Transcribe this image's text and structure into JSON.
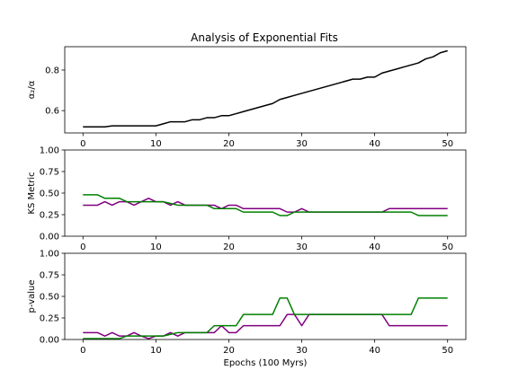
{
  "chart_data": [
    {
      "type": "line",
      "title": "Analysis of Exponential Fits",
      "xlabel": "",
      "ylabel": "α₂/α",
      "xlim": [
        -2.5,
        52.5
      ],
      "ylim": [
        0.49,
        0.915
      ],
      "xticks": [
        0,
        10,
        20,
        30,
        40,
        50
      ],
      "yticks": [
        0.6,
        0.8
      ],
      "ytick_labels": [
        "0.6",
        "0.8"
      ],
      "grid": false,
      "series": [
        {
          "color": "#000000",
          "x": [
            0,
            1,
            2,
            3,
            4,
            5,
            6,
            7,
            8,
            9,
            10,
            11,
            12,
            13,
            14,
            15,
            16,
            17,
            18,
            19,
            20,
            21,
            22,
            23,
            24,
            25,
            26,
            27,
            28,
            29,
            30,
            31,
            32,
            33,
            34,
            35,
            36,
            37,
            38,
            39,
            40,
            41,
            42,
            43,
            44,
            45,
            46,
            47,
            48,
            49,
            50
          ],
          "y": [
            0.52,
            0.52,
            0.52,
            0.52,
            0.525,
            0.525,
            0.525,
            0.525,
            0.525,
            0.525,
            0.525,
            0.535,
            0.545,
            0.545,
            0.545,
            0.555,
            0.555,
            0.565,
            0.565,
            0.575,
            0.575,
            0.585,
            0.595,
            0.605,
            0.615,
            0.625,
            0.635,
            0.655,
            0.665,
            0.675,
            0.685,
            0.695,
            0.705,
            0.715,
            0.725,
            0.735,
            0.745,
            0.755,
            0.755,
            0.765,
            0.765,
            0.785,
            0.795,
            0.805,
            0.815,
            0.825,
            0.835,
            0.855,
            0.865,
            0.885,
            0.895
          ]
        }
      ]
    },
    {
      "type": "line",
      "title": "",
      "xlabel": "",
      "ylabel": "KS Metric",
      "xlim": [
        -2.5,
        52.5
      ],
      "ylim": [
        0,
        1
      ],
      "xticks": [
        0,
        10,
        20,
        30,
        40,
        50
      ],
      "yticks": [
        0,
        0.25,
        0.5,
        0.75,
        1
      ],
      "ytick_labels": [
        "0.00",
        "0.25",
        "0.50",
        "0.75",
        "1.00"
      ],
      "grid": false,
      "series": [
        {
          "color": "#800080",
          "x": [
            0,
            1,
            2,
            3,
            4,
            5,
            6,
            7,
            8,
            9,
            10,
            11,
            12,
            13,
            14,
            15,
            16,
            17,
            18,
            19,
            20,
            21,
            22,
            23,
            24,
            25,
            26,
            27,
            28,
            29,
            30,
            31,
            32,
            33,
            34,
            35,
            36,
            37,
            38,
            39,
            40,
            41,
            42,
            43,
            44,
            45,
            46,
            47,
            48,
            49,
            50
          ],
          "y": [
            0.36,
            0.36,
            0.36,
            0.4,
            0.36,
            0.4,
            0.4,
            0.36,
            0.4,
            0.44,
            0.4,
            0.4,
            0.36,
            0.4,
            0.36,
            0.36,
            0.36,
            0.36,
            0.36,
            0.32,
            0.36,
            0.36,
            0.32,
            0.32,
            0.32,
            0.32,
            0.32,
            0.32,
            0.28,
            0.28,
            0.32,
            0.28,
            0.28,
            0.28,
            0.28,
            0.28,
            0.28,
            0.28,
            0.28,
            0.28,
            0.28,
            0.28,
            0.32,
            0.32,
            0.32,
            0.32,
            0.32,
            0.32,
            0.32,
            0.32,
            0.32
          ]
        },
        {
          "color": "#008000",
          "x": [
            0,
            1,
            2,
            3,
            4,
            5,
            6,
            7,
            8,
            9,
            10,
            11,
            12,
            13,
            14,
            15,
            16,
            17,
            18,
            19,
            20,
            21,
            22,
            23,
            24,
            25,
            26,
            27,
            28,
            29,
            30,
            31,
            32,
            33,
            34,
            35,
            36,
            37,
            38,
            39,
            40,
            41,
            42,
            43,
            44,
            45,
            46,
            47,
            48,
            49,
            50
          ],
          "y": [
            0.48,
            0.48,
            0.48,
            0.44,
            0.44,
            0.44,
            0.4,
            0.4,
            0.4,
            0.4,
            0.4,
            0.4,
            0.38,
            0.36,
            0.36,
            0.36,
            0.36,
            0.36,
            0.32,
            0.32,
            0.32,
            0.32,
            0.28,
            0.28,
            0.28,
            0.28,
            0.28,
            0.24,
            0.24,
            0.28,
            0.28,
            0.28,
            0.28,
            0.28,
            0.28,
            0.28,
            0.28,
            0.28,
            0.28,
            0.28,
            0.28,
            0.28,
            0.28,
            0.28,
            0.28,
            0.28,
            0.24,
            0.24,
            0.24,
            0.24,
            0.24
          ]
        }
      ]
    },
    {
      "type": "line",
      "title": "",
      "xlabel": "Epochs (100 Myrs)",
      "ylabel": "p-value",
      "xlim": [
        -2.5,
        52.5
      ],
      "ylim": [
        0,
        1
      ],
      "xticks": [
        0,
        10,
        20,
        30,
        40,
        50
      ],
      "yticks": [
        0,
        0.25,
        0.5,
        0.75,
        1
      ],
      "ytick_labels": [
        "0.00",
        "0.25",
        "0.50",
        "0.75",
        "1.00"
      ],
      "grid": false,
      "series": [
        {
          "color": "#800080",
          "x": [
            0,
            1,
            2,
            3,
            4,
            5,
            6,
            7,
            8,
            9,
            10,
            11,
            12,
            13,
            14,
            15,
            16,
            17,
            18,
            19,
            20,
            21,
            22,
            23,
            24,
            25,
            26,
            27,
            28,
            29,
            30,
            31,
            32,
            33,
            34,
            35,
            36,
            37,
            38,
            39,
            40,
            41,
            42,
            43,
            44,
            45,
            46,
            47,
            48,
            49,
            50
          ],
          "y": [
            0.08,
            0.08,
            0.08,
            0.04,
            0.08,
            0.04,
            0.04,
            0.08,
            0.04,
            0.01,
            0.04,
            0.04,
            0.08,
            0.04,
            0.08,
            0.08,
            0.08,
            0.08,
            0.08,
            0.16,
            0.08,
            0.08,
            0.16,
            0.16,
            0.16,
            0.16,
            0.16,
            0.16,
            0.29,
            0.29,
            0.16,
            0.29,
            0.29,
            0.29,
            0.29,
            0.29,
            0.29,
            0.29,
            0.29,
            0.29,
            0.29,
            0.29,
            0.16,
            0.16,
            0.16,
            0.16,
            0.16,
            0.16,
            0.16,
            0.16,
            0.16
          ]
        },
        {
          "color": "#008000",
          "x": [
            0,
            1,
            2,
            3,
            4,
            5,
            6,
            7,
            8,
            9,
            10,
            11,
            12,
            13,
            14,
            15,
            16,
            17,
            18,
            19,
            20,
            21,
            22,
            23,
            24,
            25,
            26,
            27,
            28,
            29,
            30,
            31,
            32,
            33,
            34,
            35,
            36,
            37,
            38,
            39,
            40,
            41,
            42,
            43,
            44,
            45,
            46,
            47,
            48,
            49,
            50
          ],
          "y": [
            0.01,
            0.01,
            0.01,
            0.01,
            0.01,
            0.01,
            0.04,
            0.04,
            0.04,
            0.04,
            0.04,
            0.04,
            0.06,
            0.08,
            0.08,
            0.08,
            0.08,
            0.08,
            0.16,
            0.16,
            0.16,
            0.16,
            0.29,
            0.29,
            0.29,
            0.29,
            0.29,
            0.48,
            0.48,
            0.29,
            0.29,
            0.29,
            0.29,
            0.29,
            0.29,
            0.29,
            0.29,
            0.29,
            0.29,
            0.29,
            0.29,
            0.29,
            0.29,
            0.29,
            0.29,
            0.29,
            0.48,
            0.48,
            0.48,
            0.48,
            0.48
          ]
        }
      ]
    }
  ]
}
